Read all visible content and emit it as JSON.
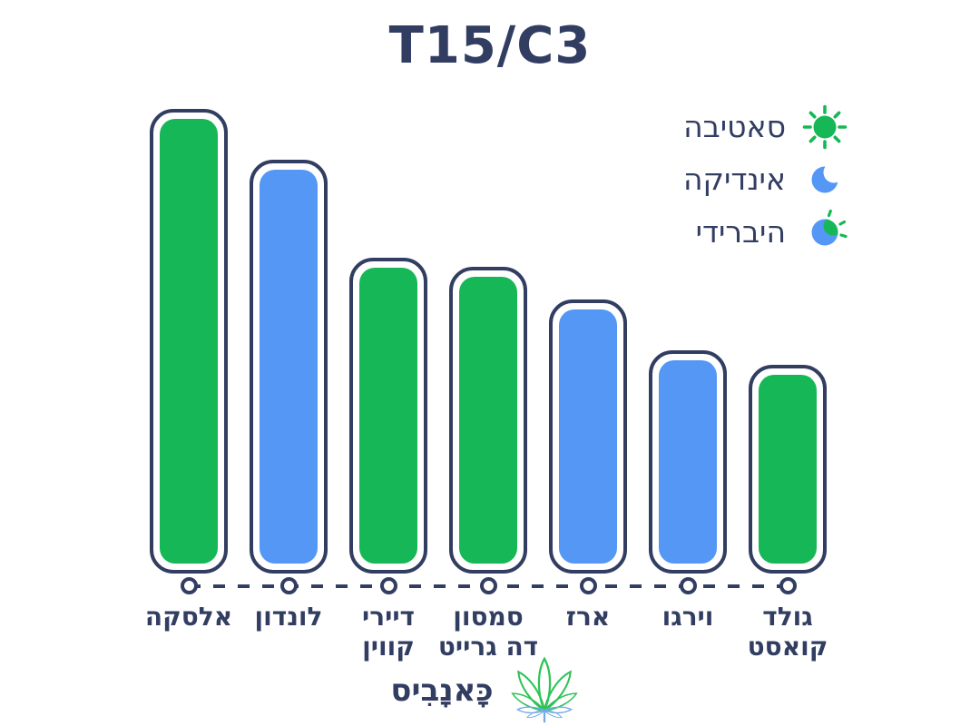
{
  "title": "T15/C3",
  "legend": {
    "items": [
      {
        "label": "סאטיבה",
        "type": "sativa",
        "icon": "sun-icon",
        "color": "#16B757"
      },
      {
        "label": "אינדיקה",
        "type": "indica",
        "icon": "moon-icon",
        "color": "#5497F5"
      },
      {
        "label": "היברידי",
        "type": "hybrid",
        "icon": "sun-moon-icon",
        "color": "#5497F5/#16B757"
      }
    ]
  },
  "chart_data": {
    "type": "bar",
    "title": "T15/C3",
    "categories": [
      "אלסקה",
      "לונדון",
      "דיירי קווין",
      "סמסון דה גרייט",
      "ארז",
      "וירגו",
      "גולד קואסט"
    ],
    "label_lines": [
      [
        "אלסקה"
      ],
      [
        "לונדון"
      ],
      [
        "דיירי",
        "קווין"
      ],
      [
        "סמסון",
        "דה גרייט"
      ],
      [
        "ארז"
      ],
      [
        "וירגו"
      ],
      [
        "גולד",
        "קואסט"
      ]
    ],
    "values_percent_of_max": [
      100,
      89,
      68,
      66,
      59,
      48,
      45
    ],
    "bar_types": [
      "sativa",
      "indica",
      "sativa",
      "sativa",
      "indica",
      "indica",
      "sativa"
    ],
    "bar_colors": [
      "#16B757",
      "#5497F5",
      "#16B757",
      "#16B757",
      "#5497F5",
      "#5497F5",
      "#16B757"
    ],
    "xlabel": "",
    "ylabel": "",
    "value_axis_labels_shown": false,
    "note": "no numeric axis in figure; values are estimated bar heights as % of tallest bar",
    "legend_position": "top-right",
    "x_axis_style": "dashed navy line with hollow circle markers under each bar",
    "grid": false
  },
  "logo": {
    "text": "כָּאנָבִיס",
    "icon": "cannabis-leaf-icon"
  },
  "colors": {
    "sativa_green": "#16B757",
    "indica_blue": "#5497F5",
    "navy": "#323D62",
    "background": "#FFFFFF",
    "leaf_green": "#2FC357",
    "leaf_blue": "#74AAE8"
  }
}
